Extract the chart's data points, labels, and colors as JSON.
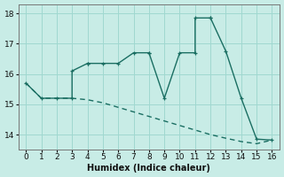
{
  "xlabel": "Humidex (Indice chaleur)",
  "background_color": "#c8ece6",
  "grid_color": "#a0d8d0",
  "line_color": "#1a6e62",
  "xlim": [
    -0.5,
    16.5
  ],
  "ylim": [
    13.5,
    18.3
  ],
  "yticks": [
    14,
    15,
    16,
    17,
    18
  ],
  "xticks": [
    0,
    1,
    2,
    3,
    4,
    5,
    6,
    7,
    8,
    9,
    10,
    11,
    12,
    13,
    14,
    15,
    16
  ],
  "line1_x": [
    0,
    1,
    2,
    3,
    3,
    4,
    4,
    5,
    6,
    7,
    8,
    8,
    9,
    10,
    11,
    11,
    12,
    12,
    13,
    14,
    15,
    16
  ],
  "line1_y": [
    15.7,
    15.2,
    15.2,
    15.2,
    16.1,
    16.35,
    16.35,
    16.35,
    16.35,
    16.7,
    16.7,
    16.7,
    15.2,
    16.7,
    16.7,
    17.85,
    17.85,
    17.85,
    16.75,
    15.2,
    13.85,
    13.82
  ],
  "line2_x": [
    0,
    1,
    2,
    3,
    4,
    5,
    6,
    7,
    8,
    9,
    10,
    11,
    12,
    13,
    14,
    15,
    16
  ],
  "line2_y": [
    15.7,
    15.2,
    15.2,
    15.2,
    15.15,
    15.05,
    14.9,
    14.75,
    14.6,
    14.45,
    14.3,
    14.15,
    14.0,
    13.88,
    13.77,
    13.7,
    13.82
  ],
  "line_width": 1.0,
  "marker_size": 3.5
}
